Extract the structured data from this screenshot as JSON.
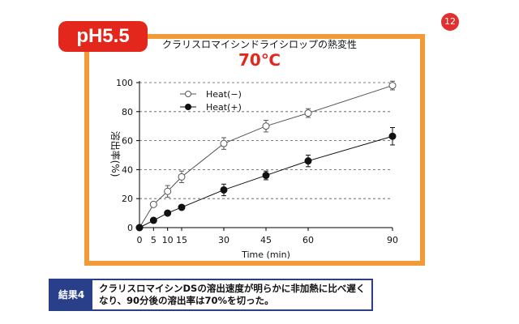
{
  "page_number": "12",
  "ph_label": "pH5.5",
  "result": {
    "label": "結果4",
    "text": "クラリスロマイシンDSの溶出速度が明らかに非加熱に比べ遅くなり、90分後の溶出率は70%を切った。"
  },
  "colors": {
    "frame": "#f39a38",
    "ph_tag": "#e4271c",
    "subtitle": "#e4271c",
    "result_border": "#2a3f8a",
    "page_badge": "#e03030"
  },
  "chart_data": {
    "type": "line",
    "title": "クラリスロマイシンドライシロップの熱変性",
    "subtitle": "70℃",
    "xlabel": "Time (min)",
    "ylabel": "溶出率(%)",
    "x": [
      0,
      5,
      10,
      15,
      30,
      45,
      60,
      90
    ],
    "x_ticks": [
      "0",
      "5",
      "10",
      "15",
      "30",
      "45",
      "60",
      "90"
    ],
    "y_ticks": [
      "0",
      "20",
      "40",
      "60",
      "80",
      "100"
    ],
    "xlim": [
      0,
      90
    ],
    "ylim": [
      0,
      100
    ],
    "grid": "horizontal dashed",
    "legend_position": "top-left",
    "series": [
      {
        "name": "Heat(−)",
        "marker": "open-circle",
        "values": [
          0,
          16,
          25,
          35,
          58,
          70,
          79,
          98
        ],
        "errors": [
          0,
          1,
          4,
          4,
          4,
          4,
          3,
          3
        ]
      },
      {
        "name": "Heat(+)",
        "marker": "filled-circle",
        "values": [
          0,
          5,
          10,
          14,
          26,
          36,
          46,
          63
        ],
        "errors": [
          0,
          1,
          1,
          1,
          4,
          3,
          4,
          6
        ]
      }
    ]
  }
}
